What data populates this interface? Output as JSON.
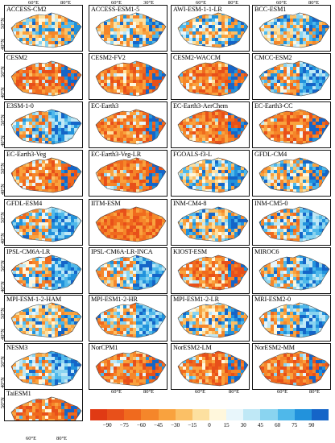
{
  "panels": [
    {
      "label": "ACCESS-CM2",
      "style": "mixed"
    },
    {
      "label": "ACCESS-ESM1-5",
      "style": "mixed"
    },
    {
      "label": "AWI-ESM-1-1-LR",
      "style": "mixed"
    },
    {
      "label": "BCC-ESM1",
      "style": "mixed"
    },
    {
      "label": "CESM2",
      "style": "orange"
    },
    {
      "label": "CESM2-FV2",
      "style": "orange"
    },
    {
      "label": "CESM2-WACCM",
      "style": "orange"
    },
    {
      "label": "CMCC-ESM2",
      "style": "blue"
    },
    {
      "label": "E3SM-1-0",
      "style": "blue"
    },
    {
      "label": "EC-Earth3",
      "style": "orange"
    },
    {
      "label": "EC-Earth3-AerChem",
      "style": "orange"
    },
    {
      "label": "EC-Earth3-CC",
      "style": "orange"
    },
    {
      "label": "EC-Earth3-Veg",
      "style": "orange"
    },
    {
      "label": "EC-Earth3-Veg-LR",
      "style": "orange"
    },
    {
      "label": "FGOALS-f3-L",
      "style": "mixed"
    },
    {
      "label": "GFDL-CM4",
      "style": "mixed"
    },
    {
      "label": "GFDL-ESM4",
      "style": "blue"
    },
    {
      "label": "IITM-ESM",
      "style": "deep"
    },
    {
      "label": "INM-CM4-8",
      "style": "mixed"
    },
    {
      "label": "INM-CM5-0",
      "style": "blue"
    },
    {
      "label": "IPSL-CM6A-LR",
      "style": "blue"
    },
    {
      "label": "IPSL-CM6A-LR-INCA",
      "style": "blue"
    },
    {
      "label": "KIOST-ESM",
      "style": "orange"
    },
    {
      "label": "MIROC6",
      "style": "blue"
    },
    {
      "label": "MPI-ESM-1-2-HAM",
      "style": "mixed"
    },
    {
      "label": "MPI-ESM1-2-HR",
      "style": "blue"
    },
    {
      "label": "MPI-ESM1-2-LR",
      "style": "mixed"
    },
    {
      "label": "MRI-ESM2-0",
      "style": "blue"
    },
    {
      "label": "NESM3",
      "style": "blue"
    },
    {
      "label": "NorCPM1",
      "style": "orange"
    },
    {
      "label": "NorESM2-LM",
      "style": "orange"
    },
    {
      "label": "NorESM2-MM",
      "style": "orange"
    },
    {
      "label": "TaiESM1",
      "style": "orange"
    }
  ],
  "axis_labels": {
    "lon_60": "60°E",
    "lon_80": "80°E",
    "lon_30": "30°E",
    "lat_50": "50°N",
    "lat_40": "40°N"
  },
  "colorbar": {
    "ticks": [
      "−90",
      "−75",
      "−60",
      "−45",
      "−30",
      "−15",
      "0",
      "15",
      "30",
      "45",
      "60",
      "75",
      "90"
    ],
    "colors": [
      "#e8501a",
      "#f06a1e",
      "#f5862a",
      "#f9a23e",
      "#fbc066",
      "#fde0a0",
      "#fff7dc",
      "#e8f6fb",
      "#bfe8f6",
      "#8ad4f0",
      "#4fb8ea",
      "#2292dc",
      "#1565c8"
    ]
  }
}
